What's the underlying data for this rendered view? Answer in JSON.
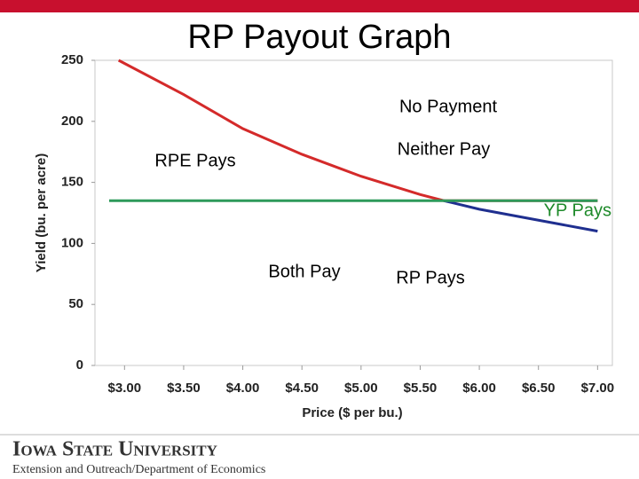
{
  "chart_data": {
    "type": "line",
    "title": "RP Payout Graph",
    "x_label": "Price ($ per bu.)",
    "y_label": "Yield (bu. per acre)",
    "xlim": [
      2.75,
      7.125
    ],
    "ylim": [
      0,
      250
    ],
    "xticks": [
      {
        "value": 3.0,
        "label": "$3.00"
      },
      {
        "value": 3.5,
        "label": "$3.50"
      },
      {
        "value": 4.0,
        "label": "$4.00"
      },
      {
        "value": 4.5,
        "label": "$4.50"
      },
      {
        "value": 5.0,
        "label": "$5.00"
      },
      {
        "value": 5.5,
        "label": "$5.50"
      },
      {
        "value": 6.0,
        "label": "$6.00"
      },
      {
        "value": 6.5,
        "label": "$6.50"
      },
      {
        "value": 7.0,
        "label": "$7.00"
      }
    ],
    "yticks": [
      0,
      50,
      100,
      150,
      200,
      250
    ],
    "grid": false,
    "series": [
      {
        "color": "#d42a2a",
        "x": [
          2.95,
          3.5,
          4.0,
          4.5,
          5.0,
          5.5,
          5.7,
          7.0
        ],
        "values": [
          250,
          222,
          194,
          173,
          155,
          140,
          135,
          135
        ]
      },
      {
        "color": "#1f2f8f",
        "x": [
          5.7,
          6.0,
          6.5,
          7.0
        ],
        "values": [
          135,
          128,
          119,
          110
        ]
      },
      {
        "color": "#2e9a5a",
        "x": [
          2.87,
          7.0
        ],
        "values": [
          135,
          135
        ]
      }
    ],
    "annotations": [
      {
        "text": "No Payment",
        "color": "#000000"
      },
      {
        "text": "Neither Pay",
        "color": "#000000"
      },
      {
        "text": "RPE Pays",
        "color": "#000000"
      },
      {
        "text": "YP Pays",
        "color": "#1e8a2a"
      },
      {
        "text": "Both Pay",
        "color": "#000000"
      },
      {
        "text": "RP Pays",
        "color": "#000000"
      }
    ]
  },
  "footer": {
    "university": "Iowa State University",
    "department": "Extension and Outreach/Department of Economics"
  }
}
